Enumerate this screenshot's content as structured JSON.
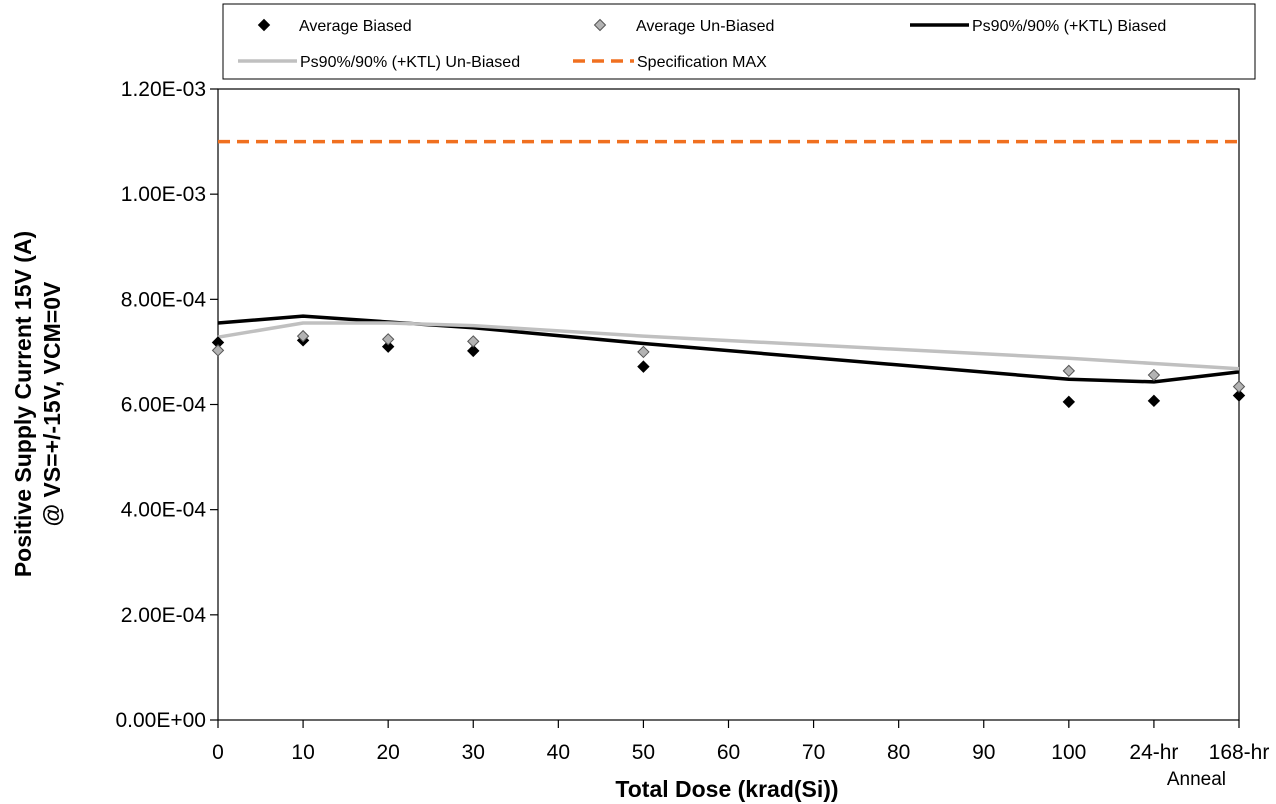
{
  "chart_data": {
    "type": "line",
    "xlabel": "Total Dose (krad(Si))",
    "ylabel_line1": "Positive Supply Current 15V (A)",
    "ylabel_line2": "@ VS=+/-15V, VCM=0V",
    "categories": [
      "0",
      "10",
      "20",
      "30",
      "40",
      "50",
      "60",
      "70",
      "80",
      "90",
      "100",
      "24-hr",
      "168-hr"
    ],
    "x_sublabel": "Anneal",
    "y_ticks": [
      "0.00E+00",
      "2.00E-04",
      "4.00E-04",
      "6.00E-04",
      "8.00E-04",
      "1.00E-03",
      "1.20E-03"
    ],
    "ylim": [
      0,
      0.0012
    ],
    "grid": false,
    "legend_position": "top",
    "series": [
      {
        "name": "Average Biased",
        "kind": "scatter",
        "marker": "diamond",
        "color": "#000000",
        "points": [
          {
            "x": "0",
            "y": 0.000718
          },
          {
            "x": "10",
            "y": 0.000722
          },
          {
            "x": "20",
            "y": 0.00071
          },
          {
            "x": "30",
            "y": 0.000702
          },
          {
            "x": "50",
            "y": 0.000672
          },
          {
            "x": "100",
            "y": 0.000605
          },
          {
            "x": "24-hr",
            "y": 0.000607
          },
          {
            "x": "168-hr",
            "y": 0.000617
          }
        ]
      },
      {
        "name": "Average Un-Biased",
        "kind": "scatter",
        "marker": "diamond",
        "color": "#b3b3b3",
        "points": [
          {
            "x": "0",
            "y": 0.000703
          },
          {
            "x": "10",
            "y": 0.00073
          },
          {
            "x": "20",
            "y": 0.000724
          },
          {
            "x": "30",
            "y": 0.00072
          },
          {
            "x": "50",
            "y": 0.0007
          },
          {
            "x": "100",
            "y": 0.000664
          },
          {
            "x": "24-hr",
            "y": 0.000656
          },
          {
            "x": "168-hr",
            "y": 0.000634
          }
        ]
      },
      {
        "name": "Ps90%/90% (+KTL) Biased",
        "kind": "line",
        "color": "#000000",
        "points": [
          {
            "x": "0",
            "y": 0.000755
          },
          {
            "x": "10",
            "y": 0.000768
          },
          {
            "x": "20",
            "y": 0.000757
          },
          {
            "x": "30",
            "y": 0.000746
          },
          {
            "x": "50",
            "y": 0.000716
          },
          {
            "x": "100",
            "y": 0.000648
          },
          {
            "x": "24-hr",
            "y": 0.000643
          },
          {
            "x": "168-hr",
            "y": 0.000662
          }
        ]
      },
      {
        "name": "Ps90%/90% (+KTL) Un-Biased",
        "kind": "line",
        "color": "#c0c0c0",
        "points": [
          {
            "x": "0",
            "y": 0.000728
          },
          {
            "x": "10",
            "y": 0.000755
          },
          {
            "x": "20",
            "y": 0.000755
          },
          {
            "x": "30",
            "y": 0.00075
          },
          {
            "x": "50",
            "y": 0.00073
          },
          {
            "x": "100",
            "y": 0.000688
          },
          {
            "x": "24-hr",
            "y": 0.000678
          },
          {
            "x": "168-hr",
            "y": 0.000668
          }
        ]
      },
      {
        "name": "Specification MAX",
        "kind": "dashed-line",
        "color": "#f07020",
        "points": [
          {
            "x": "0",
            "y": 0.0011
          },
          {
            "x": "168-hr",
            "y": 0.0011
          }
        ]
      }
    ]
  }
}
